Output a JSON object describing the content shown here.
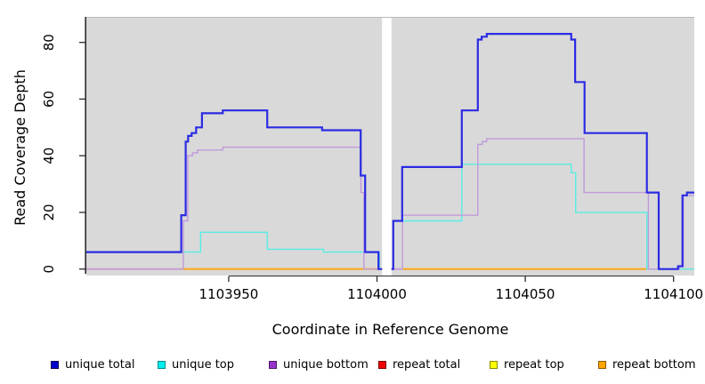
{
  "chart_data": {
    "type": "line",
    "style": "step-coverage-plot",
    "title": "",
    "xlabel": "Coordinate in Reference Genome",
    "ylabel": "Read Coverage Depth",
    "x_domain": [
      1103902,
      1104107
    ],
    "y_domain": [
      0,
      89
    ],
    "x_ticks": [
      "1103950",
      "1104000",
      "1104050",
      "1104100"
    ],
    "x_tick_values": [
      1103950,
      1104000,
      1104050,
      1104100
    ],
    "y_ticks": [
      "0",
      "20",
      "40",
      "60",
      "80"
    ],
    "y_tick_values": [
      0,
      20,
      40,
      60,
      80
    ],
    "grid": false,
    "panel_bg": "#d9d9d9",
    "no_data_gap": {
      "x0": 1104001.7,
      "x1": 1104004.9
    },
    "legend_position": "bottom",
    "series": [
      {
        "name": "repeat total",
        "key": "repeat-total",
        "color": "#db6085",
        "width": 1.6,
        "segments": [
          [
            [
              1103902,
              0
            ],
            [
              1104001.7,
              0
            ]
          ],
          [
            [
              1104004.9,
              0
            ],
            [
              1104008.5,
              0
            ]
          ]
        ]
      },
      {
        "name": "repeat top",
        "key": "repeat-top",
        "color": "#ffff00",
        "width": 1.6,
        "segments": [
          [
            [
              1103934,
              0
            ],
            [
              1104001.7,
              0
            ]
          ],
          [
            [
              1104008.5,
              0
            ],
            [
              1104091,
              0
            ]
          ]
        ]
      },
      {
        "name": "repeat bottom",
        "key": "repeat-bottom",
        "color": "#ffa513",
        "width": 1.8,
        "segments": [
          [
            [
              1103934,
              0
            ],
            [
              1104001.7,
              0
            ]
          ],
          [
            [
              1104008.5,
              0
            ],
            [
              1104091,
              0
            ]
          ]
        ]
      },
      {
        "name": "unique top",
        "key": "unique-top",
        "color": "#56ede2",
        "width": 1.4,
        "segments": [
          [
            [
              1103902,
              6
            ],
            [
              1103940.5,
              13
            ],
            [
              1103963,
              7
            ],
            [
              1103982,
              6
            ],
            [
              1104000.8,
              0
            ],
            [
              1104001.7,
              0
            ]
          ],
          [
            [
              1104004.9,
              0
            ],
            [
              1104005.5,
              17
            ],
            [
              1104028.6,
              37
            ],
            [
              1104065.5,
              34
            ],
            [
              1104067,
              20
            ],
            [
              1104091,
              0
            ],
            [
              1104107,
              0
            ]
          ]
        ]
      },
      {
        "name": "unique bottom",
        "key": "unique-bottom",
        "color": "#c09adb",
        "width": 1.4,
        "segments": [
          [
            [
              1103902,
              0
            ],
            [
              1103934.7,
              17
            ],
            [
              1103936.2,
              40
            ],
            [
              1103937.8,
              41
            ],
            [
              1103939.5,
              42
            ],
            [
              1103948,
              43
            ],
            [
              1103994.6,
              27
            ],
            [
              1103995.6,
              0
            ],
            [
              1104001.7,
              0
            ]
          ],
          [
            [
              1104004.9,
              0
            ],
            [
              1104008.6,
              19
            ],
            [
              1104034,
              44
            ],
            [
              1104035.5,
              45
            ],
            [
              1104037,
              46
            ],
            [
              1104069.8,
              27
            ],
            [
              1104091.5,
              0
            ],
            [
              1104102,
              1
            ],
            [
              1104103.3,
              26
            ],
            [
              1104107,
              26
            ]
          ]
        ]
      },
      {
        "name": "unique total",
        "key": "unique-total",
        "color": "#2b2be3",
        "width": 2.2,
        "segments": [
          [
            [
              1103902,
              6
            ],
            [
              1103934,
              19
            ],
            [
              1103935.5,
              45
            ],
            [
              1103936.3,
              47
            ],
            [
              1103937.5,
              48
            ],
            [
              1103939,
              50
            ],
            [
              1103941,
              55
            ],
            [
              1103948,
              56
            ],
            [
              1103963,
              50
            ],
            [
              1103981.5,
              49
            ],
            [
              1103994.5,
              33
            ],
            [
              1103996,
              6
            ],
            [
              1104000.5,
              0
            ],
            [
              1104001.7,
              0
            ]
          ],
          [
            [
              1104004.9,
              0
            ],
            [
              1104005.5,
              17
            ],
            [
              1104008.5,
              36
            ],
            [
              1104028.6,
              56
            ],
            [
              1104034,
              81
            ],
            [
              1104035.3,
              82
            ],
            [
              1104037,
              83
            ],
            [
              1104065.5,
              81
            ],
            [
              1104066.8,
              66
            ],
            [
              1104070,
              48
            ],
            [
              1104091,
              27
            ],
            [
              1104095,
              0
            ],
            [
              1104101.5,
              1
            ],
            [
              1104103,
              26
            ],
            [
              1104104.5,
              27
            ],
            [
              1104107,
              27
            ]
          ]
        ]
      }
    ],
    "legend": [
      {
        "label": "unique total",
        "fill": "#0000cc",
        "border": "#00004d"
      },
      {
        "label": "unique top",
        "fill": "#00eeee",
        "border": "#008b8b"
      },
      {
        "label": "unique bottom",
        "fill": "#9932cc",
        "border": "#4d1a66"
      },
      {
        "label": "repeat total",
        "fill": "#ee0000",
        "border": "#7a0000"
      },
      {
        "label": "repeat top",
        "fill": "#ffff00",
        "border": "#8a8a00"
      },
      {
        "label": "repeat bottom",
        "fill": "#ffa500",
        "border": "#8a5a00"
      }
    ]
  }
}
